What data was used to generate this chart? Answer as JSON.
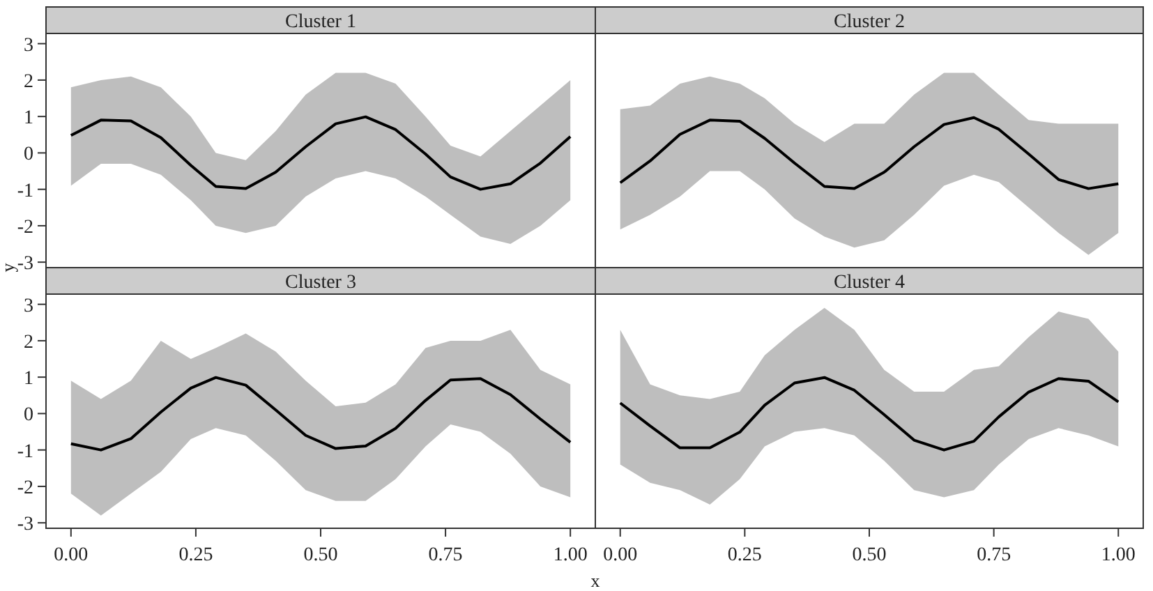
{
  "chart_data": [
    {
      "type": "line",
      "title": "Cluster 1",
      "ylabel": "y",
      "tick_labels": "y",
      "grid": false,
      "xlim": [
        -0.05,
        1.05
      ],
      "ylim": [
        -3.15,
        3.28
      ],
      "yticks": [
        -3,
        -2,
        -1,
        0,
        1,
        2,
        3
      ],
      "x": [
        0,
        0.06,
        0.12,
        0.18,
        0.24,
        0.29,
        0.35,
        0.41,
        0.47,
        0.53,
        0.59,
        0.65,
        0.71,
        0.76,
        0.82,
        0.88,
        0.94,
        1
      ],
      "series": [
        {
          "color": "#000000",
          "values": [
            0.48,
            0.9,
            0.88,
            0.42,
            -0.34,
            -0.92,
            -0.98,
            -0.53,
            0.17,
            0.8,
            0.99,
            0.64,
            -0.03,
            -0.66,
            -1.0,
            -0.85,
            -0.28,
            0.45
          ],
          "upper": [
            1.8,
            2.0,
            2.1,
            1.8,
            1.0,
            0.0,
            -0.2,
            0.6,
            1.6,
            2.2,
            2.2,
            1.9,
            1.0,
            0.2,
            -0.1,
            0.6,
            1.3,
            2.0
          ],
          "lower": [
            -0.9,
            -0.3,
            -0.3,
            -0.6,
            -1.3,
            -2.0,
            -2.2,
            -2.0,
            -1.2,
            -0.7,
            -0.5,
            -0.7,
            -1.2,
            -1.7,
            -2.3,
            -2.5,
            -2.0,
            -1.3
          ]
        }
      ]
    },
    {
      "type": "line",
      "title": "Cluster 2",
      "tick_labels": false,
      "grid": false,
      "xlim": [
        -0.05,
        1.05
      ],
      "ylim": [
        -3.15,
        3.28
      ],
      "x": [
        0,
        0.06,
        0.12,
        0.18,
        0.24,
        0.29,
        0.35,
        0.41,
        0.47,
        0.53,
        0.59,
        0.65,
        0.71,
        0.76,
        0.82,
        0.88,
        0.94,
        1
      ],
      "series": [
        {
          "color": "#000000",
          "values": [
            -0.82,
            -0.22,
            0.51,
            0.9,
            0.87,
            0.4,
            -0.28,
            -0.92,
            -0.98,
            -0.53,
            0.17,
            0.78,
            0.97,
            0.65,
            -0.03,
            -0.73,
            -0.98,
            -0.85
          ],
          "upper": [
            1.2,
            1.3,
            1.9,
            2.1,
            1.9,
            1.5,
            0.8,
            0.3,
            0.8,
            0.8,
            1.6,
            2.2,
            2.2,
            1.6,
            0.9,
            0.8,
            0.8,
            0.8
          ],
          "lower": [
            -2.1,
            -1.7,
            -1.2,
            -0.5,
            -0.5,
            -1.0,
            -1.8,
            -2.3,
            -2.6,
            -2.4,
            -1.7,
            -0.9,
            -0.6,
            -0.8,
            -1.5,
            -2.2,
            -2.8,
            -2.2
          ]
        }
      ]
    },
    {
      "type": "line",
      "title": "Cluster 3",
      "xlabel": "x",
      "grid": false,
      "xlim": [
        -0.05,
        1.05
      ],
      "ylim": [
        -3.15,
        3.28
      ],
      "xticks": [
        {
          "value": 0,
          "label": "0.00"
        },
        {
          "value": 0.25,
          "label": "0.25"
        },
        {
          "value": 0.5,
          "label": "0.50"
        },
        {
          "value": 0.75,
          "label": "0.75"
        },
        {
          "value": 1,
          "label": "1.00"
        }
      ],
      "yticks": [
        -3,
        -2,
        -1,
        0,
        1,
        2,
        3
      ],
      "x": [
        0,
        0.06,
        0.12,
        0.18,
        0.24,
        0.29,
        0.35,
        0.41,
        0.47,
        0.53,
        0.59,
        0.65,
        0.71,
        0.76,
        0.82,
        0.88,
        0.94,
        1
      ],
      "series": [
        {
          "color": "#000000",
          "values": [
            -0.83,
            -1.0,
            -0.69,
            0.04,
            0.7,
            0.99,
            0.78,
            0.1,
            -0.6,
            -0.96,
            -0.89,
            -0.41,
            0.36,
            0.92,
            0.96,
            0.52,
            -0.15,
            -0.79
          ],
          "upper": [
            0.9,
            0.4,
            0.9,
            2.0,
            1.5,
            1.8,
            2.2,
            1.7,
            0.9,
            0.2,
            0.3,
            0.8,
            1.8,
            2.0,
            2.0,
            2.3,
            1.2,
            0.8
          ],
          "lower": [
            -2.2,
            -2.8,
            -2.2,
            -1.6,
            -0.7,
            -0.4,
            -0.6,
            -1.3,
            -2.1,
            -2.4,
            -2.4,
            -1.8,
            -0.9,
            -0.3,
            -0.5,
            -1.1,
            -2.0,
            -2.3
          ]
        }
      ]
    },
    {
      "type": "line",
      "title": "Cluster 4",
      "tick_labels": "x",
      "grid": false,
      "xlim": [
        -0.05,
        1.05
      ],
      "ylim": [
        -3.15,
        3.28
      ],
      "xticks": [
        {
          "value": 0,
          "label": "0.00"
        },
        {
          "value": 0.25,
          "label": "0.25"
        },
        {
          "value": 0.5,
          "label": "0.50"
        },
        {
          "value": 0.75,
          "label": "0.75"
        },
        {
          "value": 1,
          "label": "1.00"
        }
      ],
      "x": [
        0,
        0.06,
        0.12,
        0.18,
        0.24,
        0.29,
        0.35,
        0.41,
        0.47,
        0.53,
        0.59,
        0.65,
        0.71,
        0.76,
        0.82,
        0.88,
        0.94,
        1
      ],
      "series": [
        {
          "color": "#000000",
          "values": [
            0.29,
            -0.34,
            -0.94,
            -0.94,
            -0.51,
            0.23,
            0.84,
            0.99,
            0.64,
            -0.03,
            -0.73,
            -1.0,
            -0.76,
            -0.09,
            0.59,
            0.96,
            0.89,
            0.32
          ],
          "upper": [
            2.3,
            0.8,
            0.5,
            0.4,
            0.6,
            1.6,
            2.3,
            2.9,
            2.3,
            1.2,
            0.6,
            0.6,
            1.2,
            1.3,
            2.1,
            2.8,
            2.6,
            1.7
          ],
          "lower": [
            -1.4,
            -1.9,
            -2.1,
            -2.5,
            -1.8,
            -0.9,
            -0.5,
            -0.4,
            -0.6,
            -1.3,
            -2.1,
            -2.3,
            -2.1,
            -1.4,
            -0.7,
            -0.4,
            -0.6,
            -0.9
          ]
        }
      ]
    }
  ]
}
